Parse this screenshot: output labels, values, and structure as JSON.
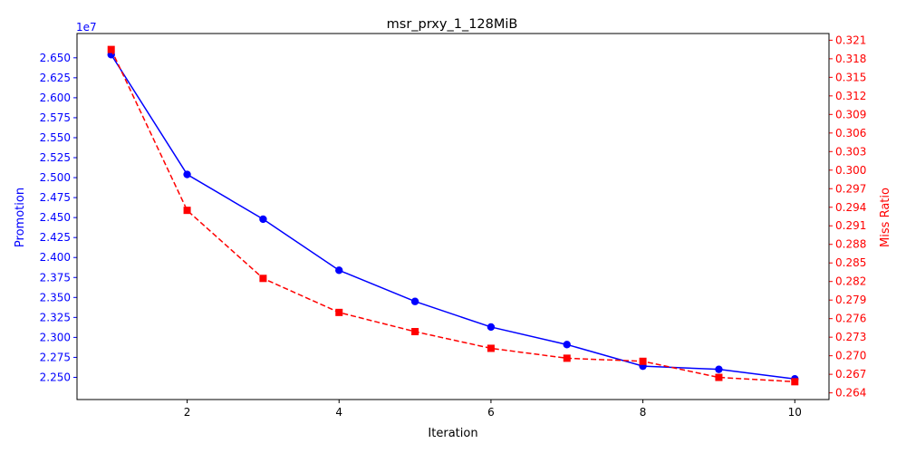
{
  "chart_data": {
    "type": "line",
    "title": "msr_prxy_1_128MiB",
    "xlabel": "Iteration",
    "ylabel_left": "Promotion",
    "ylabel_right": "Miss Ratio",
    "left_axis_offset_label": "1e7",
    "xlim": [
      0.55,
      10.45
    ],
    "ylim_left": [
      2.2222,
      2.6804
    ],
    "ylim_right": [
      0.26292,
      0.32208
    ],
    "x_ticks": [
      2,
      4,
      6,
      8,
      10
    ],
    "x_tick_labels": [
      "2",
      "4",
      "6",
      "8",
      "10"
    ],
    "left_ticks": [
      2.25,
      2.275,
      2.3,
      2.325,
      2.35,
      2.375,
      2.4,
      2.425,
      2.45,
      2.475,
      2.5,
      2.525,
      2.55,
      2.575,
      2.6,
      2.625,
      2.65
    ],
    "left_tick_labels": [
      "2.250",
      "2.275",
      "2.300",
      "2.325",
      "2.350",
      "2.375",
      "2.400",
      "2.425",
      "2.450",
      "2.475",
      "2.500",
      "2.525",
      "2.550",
      "2.575",
      "2.600",
      "2.625",
      "2.650"
    ],
    "right_ticks": [
      0.264,
      0.267,
      0.27,
      0.273,
      0.276,
      0.279,
      0.282,
      0.285,
      0.288,
      0.291,
      0.294,
      0.297,
      0.3,
      0.303,
      0.306,
      0.309,
      0.312,
      0.315,
      0.318,
      0.321
    ],
    "right_tick_labels": [
      "0.264",
      "0.267",
      "0.270",
      "0.273",
      "0.276",
      "0.279",
      "0.282",
      "0.285",
      "0.288",
      "0.291",
      "0.294",
      "0.297",
      "0.300",
      "0.303",
      "0.306",
      "0.309",
      "0.312",
      "0.315",
      "0.318",
      "0.321"
    ],
    "grid": false,
    "x": [
      1,
      2,
      3,
      4,
      5,
      6,
      7,
      8,
      9,
      10
    ],
    "series": [
      {
        "axis": "left",
        "color": "#0000ff",
        "line_style": "solid",
        "marker": "circle",
        "values": [
          2.654,
          2.504,
          2.448,
          2.384,
          2.345,
          2.313,
          2.291,
          2.264,
          2.26,
          2.248
        ]
      },
      {
        "axis": "right",
        "color": "#ff0000",
        "line_style": "dashed",
        "marker": "square",
        "values": [
          0.3195,
          0.2935,
          0.2825,
          0.277,
          0.2739,
          0.2712,
          0.2696,
          0.2691,
          0.2665,
          0.2658
        ]
      }
    ]
  },
  "colors": {
    "left_axis": "#0000ff",
    "right_axis": "#ff0000",
    "frame": "#000000"
  }
}
